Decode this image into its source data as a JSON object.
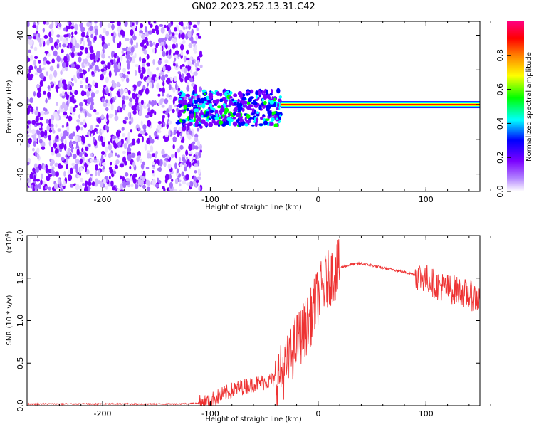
{
  "page": {
    "title": "GN02.2023.252.13.31.C42"
  },
  "chart_data": [
    {
      "type": "heatmap",
      "title": "GN02.2023.252.13.31.C42",
      "xlabel": "Height of straight line (km)",
      "ylabel": "Frequency (Hz)",
      "xlim": [
        -270,
        150
      ],
      "ylim": [
        -50,
        48
      ],
      "x_ticks": [
        -200,
        -100,
        0,
        100
      ],
      "x_tick_labels": [
        "-200",
        "-100",
        "0",
        "100"
      ],
      "y_ticks": [
        -40,
        -20,
        0,
        20,
        40
      ],
      "y_tick_labels": [
        "-40",
        "-20",
        "0",
        "20",
        "40"
      ],
      "colorbar": {
        "label": "Normalized spectral amplitude",
        "range": [
          0,
          1
        ],
        "ticks": [
          0,
          0.2,
          0.4,
          0.6,
          0.8
        ],
        "tick_labels": [
          "0.0",
          "0.2",
          "0.4",
          "0.6",
          "0.8"
        ],
        "colormap": [
          "#ffffff",
          "#7b00ff",
          "#0000ff",
          "#00ffff",
          "#00ff00",
          "#ffff00",
          "#ff8000",
          "#ff0000",
          "#ff0080"
        ]
      },
      "regions": [
        {
          "x_range": [
            -270,
            -115
          ],
          "y_range": [
            -50,
            48
          ],
          "level": 0.3,
          "description": "noise"
        },
        {
          "x_range": [
            -130,
            -35
          ],
          "y_range": [
            -12,
            8
          ],
          "level": 0.45
        },
        {
          "x_range": [
            -35,
            150
          ],
          "y_range": [
            -2,
            2
          ],
          "level": 0.9
        }
      ],
      "grid": false
    },
    {
      "type": "line",
      "xlabel": "Height of straight line (km)",
      "ylabel": "SNR (10 * v/v)",
      "y_multiplier": "(x10",
      "y_multiplier_exp": "4",
      "y_multiplier_close": ")",
      "xlim": [
        -270,
        150
      ],
      "ylim": [
        0,
        2.0
      ],
      "x_ticks": [
        -200,
        -100,
        0,
        100
      ],
      "x_tick_labels": [
        "-200",
        "-100",
        "0",
        "100"
      ],
      "y_ticks": [
        0,
        0.5,
        1.0,
        1.5,
        2.0
      ],
      "y_tick_labels": [
        "0.0",
        "0.5",
        "1.0",
        "1.5",
        "2.0"
      ],
      "color": "#ee3333",
      "grid": false,
      "series": [
        {
          "x": [
            -270,
            -200,
            -130,
            -110,
            -100,
            -90,
            -80,
            -70,
            -60,
            -50,
            -40,
            -30,
            -25,
            -20,
            -15,
            -10,
            -5,
            0,
            10,
            20,
            30,
            40,
            50,
            60,
            70,
            80,
            90,
            100,
            110,
            120,
            130,
            140,
            150
          ],
          "y": [
            0.02,
            0.02,
            0.02,
            0.03,
            0.06,
            0.12,
            0.18,
            0.22,
            0.25,
            0.28,
            0.3,
            0.45,
            0.6,
            0.75,
            0.85,
            0.95,
            1.1,
            1.3,
            1.5,
            1.62,
            1.66,
            1.67,
            1.65,
            1.62,
            1.6,
            1.57,
            1.54,
            1.5,
            1.42,
            1.38,
            1.35,
            1.3,
            1.25
          ]
        }
      ]
    }
  ]
}
